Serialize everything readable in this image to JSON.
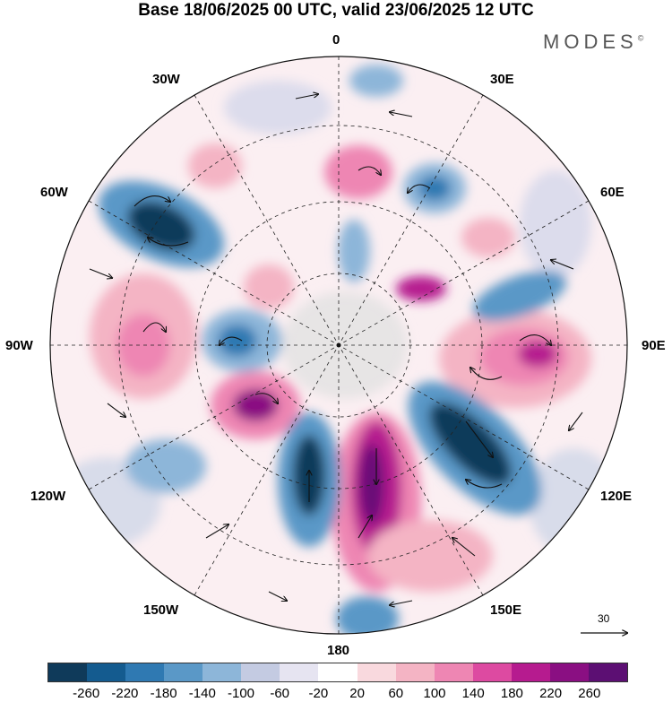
{
  "header": {
    "title": "Base 18/06/2025 00 UTC, valid 23/06/2025 12 UTC",
    "brand": "MODES"
  },
  "map": {
    "projection": "north-polar-stereographic",
    "longitude_labels": {
      "0": "0",
      "30E": "30E",
      "60E": "60E",
      "90E": "90E",
      "120E": "120E",
      "150E": "150E",
      "180": "180",
      "150W": "150W",
      "120W": "120W",
      "90W": "90W",
      "60W": "60W",
      "30W": "30W"
    },
    "anomaly_colors": {
      "strong_negative": "#0b3a66",
      "negative": "#3f85be",
      "weak_negative": "#c6cde3",
      "weak_positive": "#f7cfd6",
      "positive": "#ee7fb0",
      "strong_positive": "#8a1483"
    },
    "wind_reference": "30"
  },
  "colorbar": {
    "colors": [
      "#0f3a5a",
      "#145b8f",
      "#2f79b2",
      "#5a98c7",
      "#8db6d9",
      "#c4cbe2",
      "#e6e4f1",
      "#ffffff",
      "#f9d9de",
      "#f4b4c4",
      "#ee86b3",
      "#dd4aa1",
      "#b61b8f",
      "#8a0f82",
      "#5c0f73"
    ],
    "ticks": [
      "-260",
      "-220",
      "-180",
      "-140",
      "-100",
      "-60",
      "-20",
      "20",
      "60",
      "100",
      "140",
      "180",
      "220",
      "260"
    ]
  }
}
